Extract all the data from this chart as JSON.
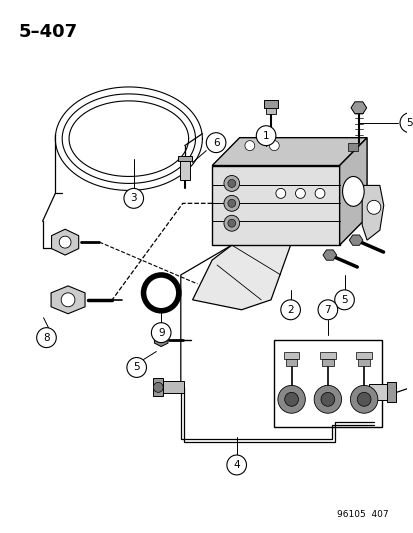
{
  "title": "5–407",
  "footer": "96105  407",
  "bg_color": "#ffffff",
  "line_color": "#000000",
  "fig_width": 4.14,
  "fig_height": 5.33,
  "dpi": 100
}
